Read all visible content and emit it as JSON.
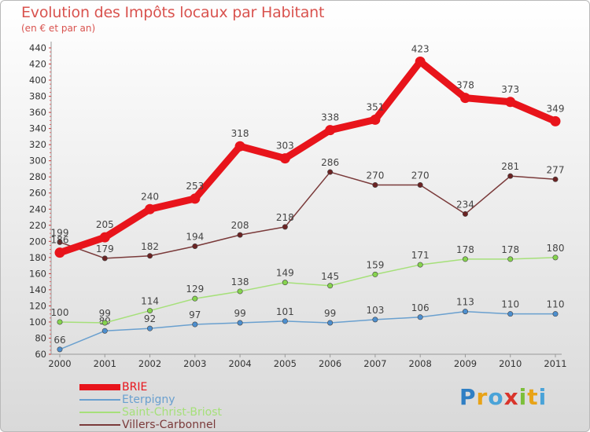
{
  "header": {
    "title": "Evolution des Impôts locaux par Habitant",
    "subtitle": "(en € et par an)"
  },
  "logo": {
    "text": "Proxiti",
    "letter_colors": [
      "#2f7fc4",
      "#e8a317",
      "#4aa3d8",
      "#d9342b",
      "#7cbf3a",
      "#e8a317",
      "#4aa3d8"
    ]
  },
  "chart_data": {
    "type": "line",
    "title": "Evolution des Impôts locaux par Habitant",
    "subtitle": "(en € et par an)",
    "xlabel": "",
    "ylabel": "",
    "x": [
      "2000",
      "2001",
      "2002",
      "2003",
      "2004",
      "2005",
      "2006",
      "2007",
      "2008",
      "2009",
      "2010",
      "2011"
    ],
    "ylim": [
      60,
      440
    ],
    "yticks": [
      60,
      80,
      100,
      120,
      140,
      160,
      180,
      200,
      220,
      240,
      260,
      280,
      300,
      320,
      340,
      360,
      380,
      400,
      420,
      440
    ],
    "grid": false,
    "legend_position": "bottom-left",
    "series": [
      {
        "name": "BRIE",
        "color": "#e8141b",
        "marker_color": "#e8141b",
        "label_color": "#444444",
        "values": [
          186,
          205,
          240,
          253,
          318,
          303,
          338,
          351,
          423,
          378,
          373,
          349
        ]
      },
      {
        "name": "Eterpigny",
        "color": "#6aa0cf",
        "marker_color": "#4d8fcf",
        "label_color": "#444444",
        "values": [
          66,
          89,
          92,
          97,
          99,
          101,
          99,
          103,
          106,
          113,
          110,
          110
        ]
      },
      {
        "name": "Saint-Christ-Briost",
        "color": "#a6e07a",
        "marker_color": "#86d44e",
        "label_color": "#444444",
        "values": [
          100,
          99,
          114,
          129,
          138,
          149,
          145,
          159,
          171,
          178,
          178,
          180
        ]
      },
      {
        "name": "Villers-Carbonnel",
        "color": "#7a3a3a",
        "marker_color": "#6b2323",
        "label_color": "#444444",
        "values": [
          199,
          179,
          182,
          194,
          208,
          218,
          286,
          270,
          270,
          234,
          281,
          277
        ]
      }
    ]
  }
}
